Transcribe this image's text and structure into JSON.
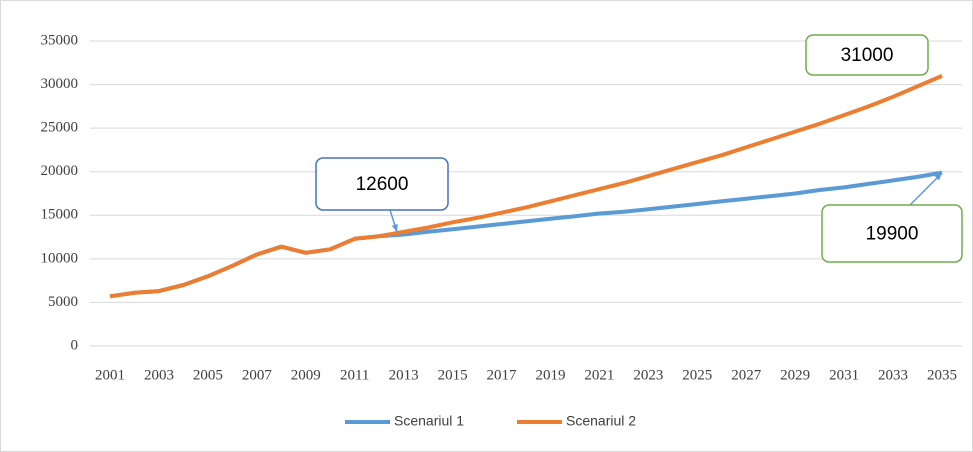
{
  "chart_data": {
    "type": "line",
    "x": [
      2001,
      2002,
      2003,
      2004,
      2005,
      2006,
      2007,
      2008,
      2009,
      2010,
      2011,
      2012,
      2013,
      2014,
      2015,
      2016,
      2017,
      2018,
      2019,
      2020,
      2021,
      2022,
      2023,
      2024,
      2025,
      2026,
      2027,
      2028,
      2029,
      2030,
      2031,
      2032,
      2033,
      2034,
      2035
    ],
    "series": [
      {
        "name": "Scenariul 1",
        "color": "#5b9bd5",
        "values": [
          5700,
          6100,
          6300,
          7000,
          8000,
          9200,
          10500,
          11400,
          10700,
          11100,
          12300,
          12600,
          12800,
          13100,
          13400,
          13700,
          14000,
          14300,
          14600,
          14900,
          15200,
          15400,
          15700,
          16000,
          16300,
          16600,
          16900,
          17200,
          17500,
          17900,
          18200,
          18600,
          19000,
          19400,
          19900
        ]
      },
      {
        "name": "Scenariul 2",
        "color": "#ed7d31",
        "values": [
          5700,
          6100,
          6300,
          7000,
          8000,
          9200,
          10500,
          11400,
          10700,
          11100,
          12300,
          12600,
          13100,
          13600,
          14200,
          14700,
          15300,
          15900,
          16600,
          17300,
          18000,
          18700,
          19500,
          20300,
          21100,
          21900,
          22800,
          23700,
          24600,
          25500,
          26500,
          27500,
          28600,
          29800,
          31000
        ]
      }
    ],
    "xlim": [
      2001,
      2035
    ],
    "xticks": [
      2001,
      2003,
      2005,
      2007,
      2009,
      2011,
      2013,
      2015,
      2017,
      2019,
      2021,
      2023,
      2025,
      2027,
      2029,
      2031,
      2033,
      2035
    ],
    "ylim": [
      0,
      35000
    ],
    "yticks": [
      0,
      5000,
      10000,
      15000,
      20000,
      25000,
      30000,
      35000
    ],
    "grid": true,
    "legend": "bottom",
    "annotations": [
      {
        "text": "12600",
        "color": "#4472c4"
      },
      {
        "text": "31000",
        "color": "#70ad47"
      },
      {
        "text": "19900",
        "color": "#70ad47"
      }
    ]
  }
}
